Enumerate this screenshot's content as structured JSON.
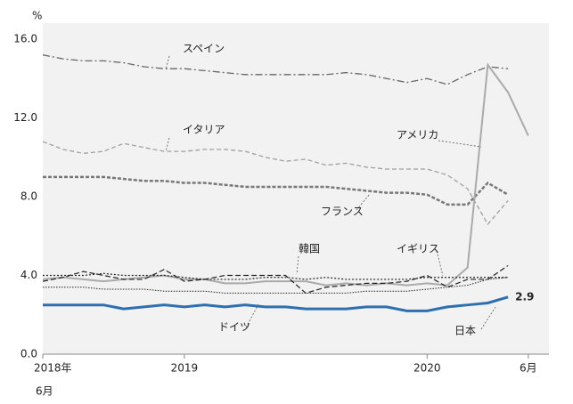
{
  "chart_data": {
    "type": "line",
    "y_unit": "%",
    "categories": [
      "2018年",
      null,
      null,
      null,
      null,
      null,
      null,
      "2019",
      null,
      null,
      null,
      null,
      null,
      null,
      null,
      null,
      null,
      null,
      null,
      "2020",
      null,
      null,
      null,
      null,
      "6月"
    ],
    "start_month_label": "6月",
    "ylim": [
      0,
      16
    ],
    "yticks": [
      {
        "value": 0,
        "label": "0.0"
      },
      {
        "value": 4,
        "label": "4.0"
      },
      {
        "value": 8,
        "label": "8.0"
      },
      {
        "value": 12,
        "label": "12.0"
      },
      {
        "value": 16,
        "label": "16.0"
      }
    ],
    "grid": false,
    "series": [
      {
        "name": "スペイン",
        "color": "#666666",
        "dash": "8,3,2,3",
        "width": 1.3,
        "values": [
          15.2,
          15.0,
          14.9,
          14.9,
          14.8,
          14.6,
          14.5,
          14.5,
          14.4,
          14.3,
          14.2,
          14.2,
          14.2,
          14.2,
          14.2,
          14.3,
          14.2,
          14.0,
          13.8,
          14.0,
          13.7,
          14.2,
          14.6,
          14.5,
          null
        ]
      },
      {
        "name": "イタリア",
        "color": "#a0a0a0",
        "dash": "5,3",
        "width": 1.3,
        "values": [
          10.8,
          10.4,
          10.2,
          10.3,
          10.7,
          10.5,
          10.3,
          10.3,
          10.4,
          10.4,
          10.3,
          10.0,
          9.8,
          9.9,
          9.6,
          9.7,
          9.5,
          9.4,
          9.4,
          9.4,
          9.1,
          8.4,
          6.6,
          7.8,
          null
        ]
      },
      {
        "name": "フランス",
        "color": "#777777",
        "dash": "4,2",
        "width": 2.5,
        "values": [
          9.0,
          9.0,
          9.0,
          9.0,
          8.9,
          8.8,
          8.8,
          8.7,
          8.7,
          8.6,
          8.5,
          8.5,
          8.5,
          8.5,
          8.5,
          8.4,
          8.3,
          8.2,
          8.2,
          8.1,
          7.6,
          7.6,
          8.7,
          8.1,
          null
        ]
      },
      {
        "name": "アメリカ",
        "color": "#aaaaaa",
        "dash": "",
        "width": 2,
        "values": [
          3.8,
          3.9,
          3.8,
          3.7,
          3.8,
          3.9,
          4.0,
          3.8,
          3.8,
          3.6,
          3.6,
          3.7,
          3.7,
          3.7,
          3.5,
          3.6,
          3.5,
          3.6,
          3.5,
          3.6,
          3.5,
          4.4,
          14.7,
          13.3,
          11.1
        ]
      },
      {
        "name": "韓国",
        "color": "#222222",
        "dash": "6,3",
        "width": 1.2,
        "values": [
          3.7,
          3.9,
          4.2,
          4.0,
          3.8,
          3.8,
          4.3,
          3.7,
          3.8,
          4.0,
          4.0,
          4.0,
          4.0,
          3.1,
          3.4,
          3.5,
          3.6,
          3.6,
          3.7,
          4.0,
          3.4,
          3.8,
          3.8,
          4.5,
          null
        ]
      },
      {
        "name": "イギリス",
        "color": "#222222",
        "dash": "2,2",
        "width": 1.2,
        "values": [
          4.0,
          4.0,
          4.0,
          4.1,
          4.0,
          4.0,
          4.0,
          3.9,
          3.8,
          3.8,
          3.8,
          3.9,
          3.9,
          3.8,
          3.9,
          3.8,
          3.8,
          3.8,
          3.8,
          3.9,
          3.9,
          3.9,
          3.9,
          3.9,
          null
        ]
      },
      {
        "name": "ドイツ",
        "color": "#222222",
        "dash": "1.5,1.5",
        "width": 1,
        "values": [
          3.4,
          3.4,
          3.4,
          3.3,
          3.3,
          3.3,
          3.2,
          3.2,
          3.2,
          3.1,
          3.1,
          3.1,
          3.1,
          3.1,
          3.1,
          3.1,
          3.2,
          3.2,
          3.2,
          3.3,
          3.4,
          3.5,
          3.8,
          3.9,
          null
        ]
      },
      {
        "name": "日本",
        "color": "#2e6fb0",
        "dash": "",
        "width": 3,
        "values": [
          2.5,
          2.5,
          2.5,
          2.5,
          2.3,
          2.4,
          2.5,
          2.4,
          2.5,
          2.4,
          2.5,
          2.4,
          2.4,
          2.3,
          2.3,
          2.3,
          2.4,
          2.4,
          2.2,
          2.2,
          2.4,
          2.5,
          2.6,
          2.9,
          null
        ]
      }
    ]
  }
}
